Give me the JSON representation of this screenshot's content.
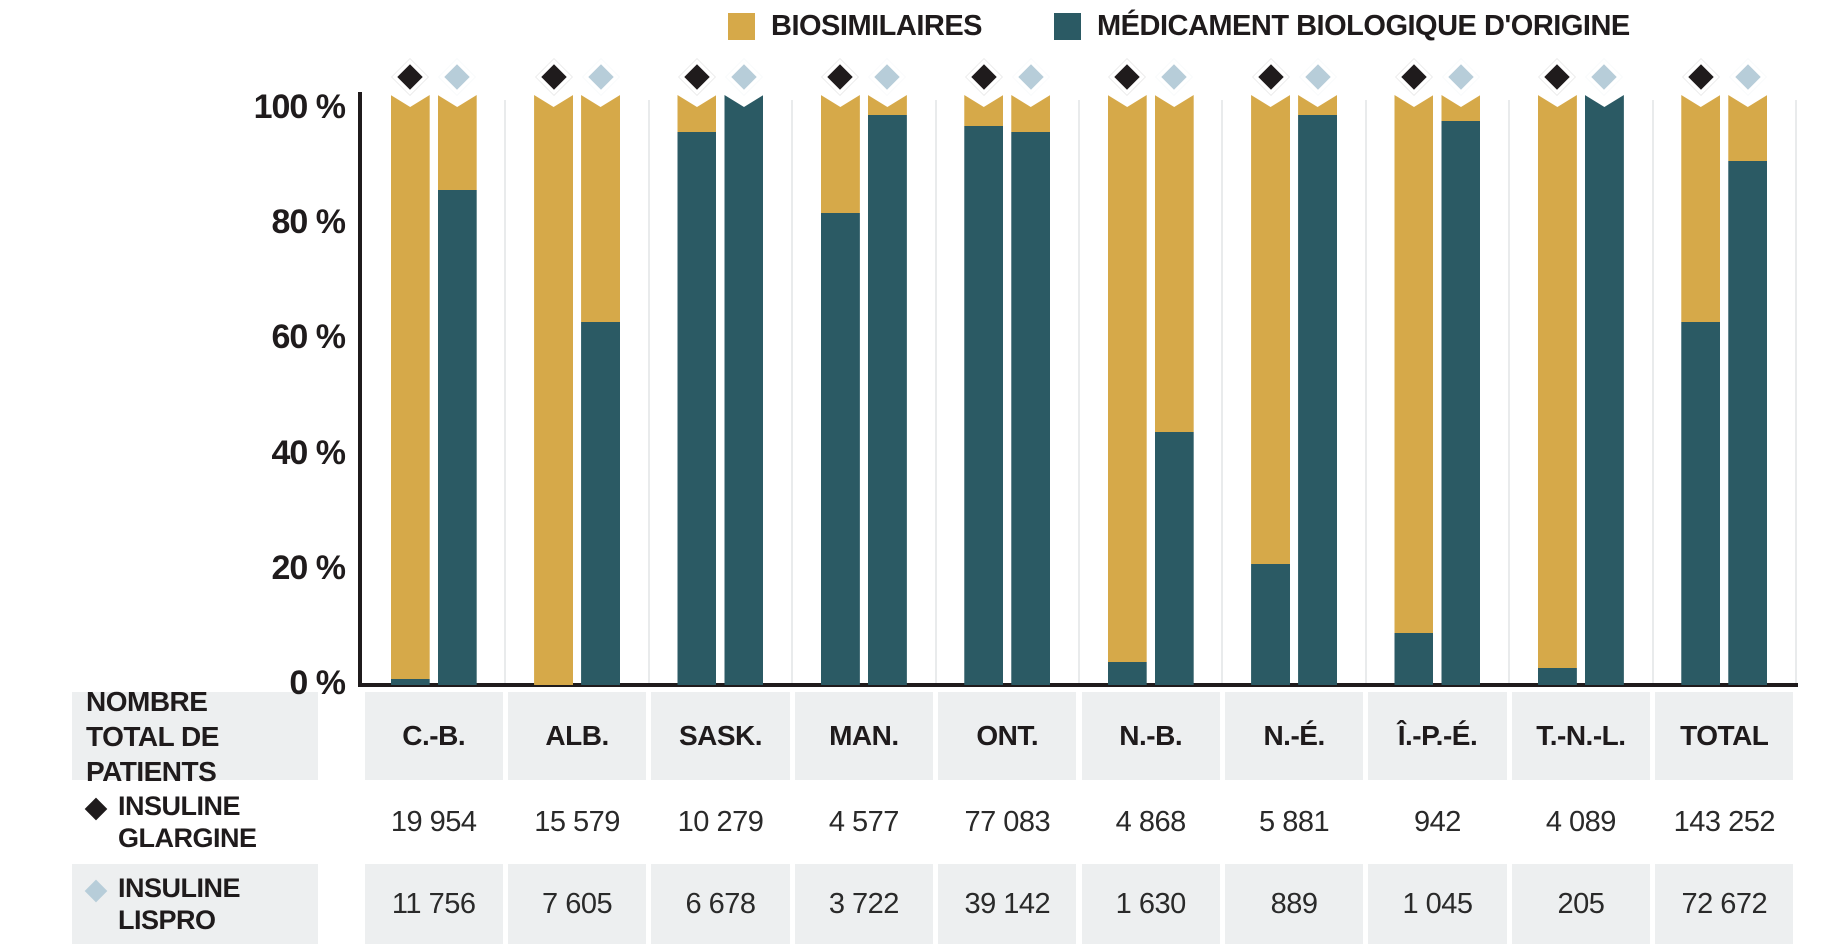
{
  "legend": {
    "items": [
      {
        "label": "BIOSIMILAIRES",
        "color": "#d6a949",
        "swatch": "yellow-square"
      },
      {
        "label": "MÉDICAMENT BIOLOGIQUE D'ORIGINE",
        "color": "#2b5a64",
        "swatch": "teal-square"
      }
    ]
  },
  "y_axis": {
    "ticks": [
      "100 %",
      "80 %",
      "60 %",
      "40 %",
      "20 %",
      "0 %"
    ]
  },
  "chart_data": {
    "type": "bar",
    "subtype": "stacked-100-percent-paired",
    "categories": [
      "C.-B.",
      "ALB.",
      "SASK.",
      "MAN.",
      "ONT.",
      "N.-B.",
      "N.-É.",
      "Î.-P.-É.",
      "T.-N.-L.",
      "TOTAL"
    ],
    "series": [
      {
        "name": "Insuline glargine",
        "marker": "black-diamond",
        "biosimilaires_pct": [
          99,
          100,
          4,
          18,
          3,
          96,
          79,
          91,
          97,
          37
        ],
        "origine_pct": [
          1,
          0,
          96,
          82,
          97,
          4,
          21,
          9,
          3,
          63
        ]
      },
      {
        "name": "Insuline lispro",
        "marker": "lightblue-diamond",
        "biosimilaires_pct": [
          14,
          37,
          0,
          1,
          4,
          56,
          1,
          2,
          0,
          9
        ],
        "origine_pct": [
          86,
          63,
          100,
          99,
          96,
          44,
          99,
          98,
          100,
          91
        ]
      }
    ],
    "colors": {
      "biosimilaires": "#d6a949",
      "medicament_origine": "#2b5a64",
      "marker_glargine": "#1f1b1c",
      "marker_lispro": "#b7cdd9"
    },
    "ylim": [
      0,
      100
    ],
    "grid": "off",
    "legend_position": "top-right"
  },
  "table": {
    "header_label": "NOMBRE TOTAL DE PATIENTS",
    "columns": [
      "C.-B.",
      "ALB.",
      "SASK.",
      "MAN.",
      "ONT.",
      "N.-B.",
      "N.-É.",
      "Î.-P.-É.",
      "T.-N.-L.",
      "TOTAL"
    ],
    "rows": [
      {
        "label": "INSULINE GLARGINE",
        "marker": "black-diamond",
        "values": [
          "19 954",
          "15 579",
          "10 279",
          "4 577",
          "77 083",
          "4 868",
          "5 881",
          "942",
          "4 089",
          "143 252"
        ]
      },
      {
        "label": "INSULINE LISPRO",
        "marker": "lightblue-diamond",
        "values": [
          "11 756",
          "7 605",
          "6 678",
          "3 722",
          "39 142",
          "1 630",
          "889",
          "1 045",
          "205",
          "72 672"
        ]
      }
    ]
  }
}
